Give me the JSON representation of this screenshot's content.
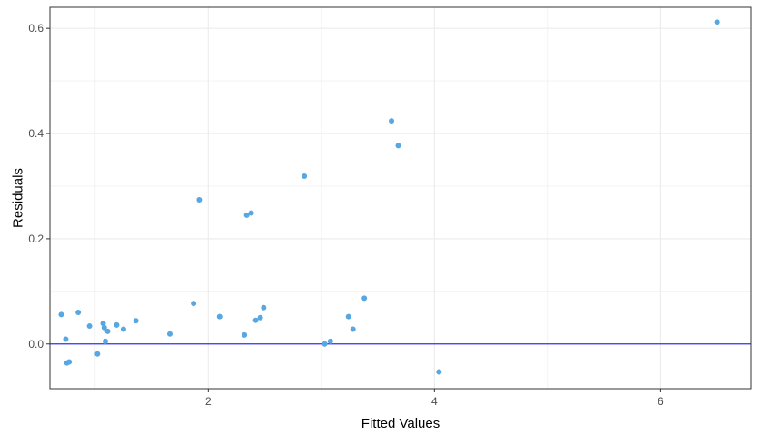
{
  "chart_data": {
    "type": "scatter",
    "title": "",
    "xlabel": "Fitted Values",
    "ylabel": "Residuals",
    "xlim": [
      0.6,
      6.8
    ],
    "ylim": [
      -0.085,
      0.64
    ],
    "x_major_ticks": [
      2,
      4,
      6
    ],
    "x_minor_ticks": [
      1,
      3,
      5
    ],
    "y_major_ticks": [
      0.0,
      0.2,
      0.4,
      0.6
    ],
    "y_minor_ticks": [
      0.1,
      0.3,
      0.5
    ],
    "x_tick_labels": [
      "2",
      "4",
      "6"
    ],
    "y_tick_labels": [
      "0.0",
      "0.2",
      "0.4",
      "0.6"
    ],
    "grid": true,
    "reference_line_y": 0,
    "colors": {
      "points": "#56a7e2",
      "reference_line": "#3030ff",
      "grid": "#ebebeb",
      "border": "#333333"
    },
    "points": [
      {
        "x": 0.7,
        "y": 0.056
      },
      {
        "x": 0.74,
        "y": 0.009
      },
      {
        "x": 0.75,
        "y": -0.036
      },
      {
        "x": 0.77,
        "y": -0.034
      },
      {
        "x": 0.85,
        "y": 0.06
      },
      {
        "x": 0.95,
        "y": 0.034
      },
      {
        "x": 1.02,
        "y": -0.019
      },
      {
        "x": 1.07,
        "y": 0.039
      },
      {
        "x": 1.08,
        "y": 0.031
      },
      {
        "x": 1.09,
        "y": 0.005
      },
      {
        "x": 1.11,
        "y": 0.024
      },
      {
        "x": 1.19,
        "y": 0.036
      },
      {
        "x": 1.25,
        "y": 0.028
      },
      {
        "x": 1.36,
        "y": 0.044
      },
      {
        "x": 1.66,
        "y": 0.019
      },
      {
        "x": 1.87,
        "y": 0.077
      },
      {
        "x": 1.92,
        "y": 0.274
      },
      {
        "x": 2.1,
        "y": 0.052
      },
      {
        "x": 2.32,
        "y": 0.017
      },
      {
        "x": 2.34,
        "y": 0.245
      },
      {
        "x": 2.38,
        "y": 0.249
      },
      {
        "x": 2.42,
        "y": 0.045
      },
      {
        "x": 2.46,
        "y": 0.05
      },
      {
        "x": 2.49,
        "y": 0.069
      },
      {
        "x": 2.85,
        "y": 0.319
      },
      {
        "x": 3.03,
        "y": 0.0
      },
      {
        "x": 3.08,
        "y": 0.005
      },
      {
        "x": 3.24,
        "y": 0.052
      },
      {
        "x": 3.28,
        "y": 0.028
      },
      {
        "x": 3.38,
        "y": 0.087
      },
      {
        "x": 3.62,
        "y": 0.424
      },
      {
        "x": 3.68,
        "y": 0.377
      },
      {
        "x": 4.04,
        "y": -0.053
      },
      {
        "x": 6.5,
        "y": 0.612
      }
    ]
  }
}
